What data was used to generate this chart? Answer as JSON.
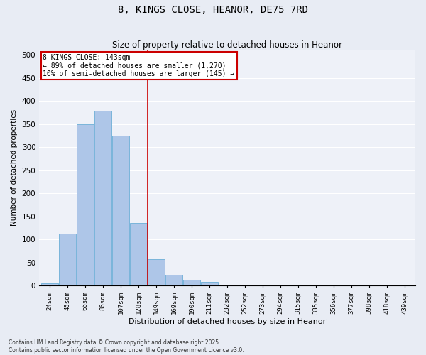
{
  "title": "8, KINGS CLOSE, HEANOR, DE75 7RD",
  "subtitle": "Size of property relative to detached houses in Heanor",
  "xlabel": "Distribution of detached houses by size in Heanor",
  "ylabel": "Number of detached properties",
  "bar_labels": [
    "24sqm",
    "45sqm",
    "66sqm",
    "86sqm",
    "107sqm",
    "128sqm",
    "149sqm",
    "169sqm",
    "190sqm",
    "211sqm",
    "232sqm",
    "252sqm",
    "273sqm",
    "294sqm",
    "315sqm",
    "335sqm",
    "356sqm",
    "377sqm",
    "398sqm",
    "418sqm",
    "439sqm"
  ],
  "bar_values": [
    5,
    112,
    350,
    378,
    325,
    135,
    57,
    23,
    12,
    8,
    0,
    0,
    0,
    0,
    0,
    1,
    0,
    0,
    0,
    0,
    0
  ],
  "bar_color": "#aec6e8",
  "bar_edge_color": "#6baed6",
  "vline_x": 5.5,
  "vline_color": "#cc0000",
  "annotation_title": "8 KINGS CLOSE: 143sqm",
  "annotation_line1": "← 89% of detached houses are smaller (1,270)",
  "annotation_line2": "10% of semi-detached houses are larger (145) →",
  "annotation_box_color": "#cc0000",
  "ylim": [
    0,
    510
  ],
  "yticks": [
    0,
    50,
    100,
    150,
    200,
    250,
    300,
    350,
    400,
    450,
    500
  ],
  "footer1": "Contains HM Land Registry data © Crown copyright and database right 2025.",
  "footer2": "Contains public sector information licensed under the Open Government Licence v3.0.",
  "background_color": "#e8ecf4",
  "plot_bg_color": "#eef1f8",
  "grid_color": "#ffffff"
}
